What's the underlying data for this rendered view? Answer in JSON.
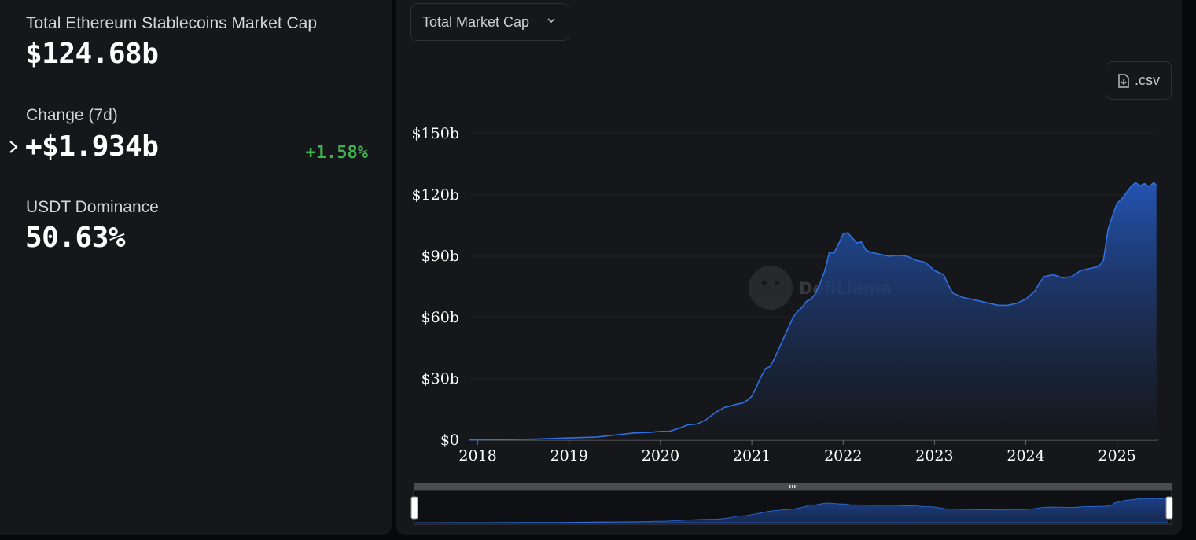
{
  "stats": {
    "market_cap_label": "Total Ethereum Stablecoins Market Cap",
    "market_cap_value": "$124.68b",
    "change_label": "Change (7d)",
    "change_value": "+$1.934b",
    "change_pct": "+1.58%",
    "dominance_label": "USDT Dominance",
    "dominance_value": "50.63%"
  },
  "controls": {
    "dropdown_label": "Total Market Cap",
    "csv_label": ".csv",
    "watermark": "DefiLlama"
  },
  "colors": {
    "accent": "#2f6fe0",
    "positive": "#3fb24f",
    "panel": "#16171a"
  },
  "chart_data": {
    "type": "area",
    "title": "",
    "xlabel": "",
    "ylabel": "",
    "x_ticks": [
      "2018",
      "2019",
      "2020",
      "2021",
      "2022",
      "2023",
      "2024",
      "2025"
    ],
    "y_ticks": [
      "$0",
      "$30b",
      "$60b",
      "$90b",
      "$120b",
      "$150b"
    ],
    "ylim": [
      0,
      150
    ],
    "xlim": [
      2017.9,
      2025.45
    ],
    "grid": true,
    "series": [
      {
        "x": [
          2017.9,
          2018.0,
          2018.3,
          2018.6,
          2018.8,
          2019.0,
          2019.3,
          2019.5,
          2019.7,
          2019.9,
          2020.0,
          2020.1,
          2020.2,
          2020.3,
          2020.4,
          2020.5,
          2020.6,
          2020.7,
          2020.75,
          2020.8,
          2020.9,
          2020.95,
          2021.0,
          2021.05,
          2021.1,
          2021.15,
          2021.2,
          2021.25,
          2021.3,
          2021.35,
          2021.4,
          2021.45,
          2021.5,
          2021.55,
          2021.6,
          2021.65,
          2021.7,
          2021.75,
          2021.8,
          2021.85,
          2021.9,
          2021.95,
          2022.0,
          2022.05,
          2022.1,
          2022.15,
          2022.2,
          2022.25,
          2022.3,
          2022.35,
          2022.4,
          2022.5,
          2022.6,
          2022.7,
          2022.8,
          2022.9,
          2023.0,
          2023.1,
          2023.15,
          2023.2,
          2023.3,
          2023.4,
          2023.5,
          2023.6,
          2023.7,
          2023.8,
          2023.9,
          2024.0,
          2024.1,
          2024.15,
          2024.2,
          2024.3,
          2024.4,
          2024.5,
          2024.6,
          2024.7,
          2024.8,
          2024.85,
          2024.9,
          2024.95,
          2025.0,
          2025.05,
          2025.1,
          2025.15,
          2025.2,
          2025.25,
          2025.3,
          2025.35,
          2025.4,
          2025.43
        ],
        "values": [
          0.1,
          0.2,
          0.3,
          0.5,
          0.8,
          1.1,
          1.5,
          2.5,
          3.5,
          3.9,
          4.3,
          4.3,
          5.8,
          7.5,
          7.9,
          10.0,
          13.5,
          16.0,
          16.5,
          17.2,
          18.2,
          19.5,
          21.5,
          26.0,
          31.0,
          35.0,
          36.0,
          40.0,
          45.0,
          50.0,
          55.0,
          60.0,
          63.0,
          65.0,
          68.0,
          69.0,
          72.0,
          77.0,
          83.0,
          92.0,
          91.5,
          96.0,
          101.0,
          101.5,
          99.0,
          96.5,
          97.0,
          93.0,
          92.0,
          91.5,
          91.0,
          90.0,
          90.5,
          90.0,
          88.0,
          87.0,
          83.0,
          81.0,
          76.0,
          72.0,
          70.0,
          69.0,
          68.0,
          67.0,
          66.0,
          66.0,
          67.0,
          69.0,
          73.0,
          77.0,
          80.0,
          81.0,
          79.5,
          80.0,
          83.0,
          84.0,
          85.0,
          88.0,
          103.0,
          110.0,
          116.0,
          118.0,
          121.0,
          124.0,
          126.0,
          124.5,
          125.5,
          124.0,
          126.0,
          124.7
        ]
      }
    ]
  }
}
